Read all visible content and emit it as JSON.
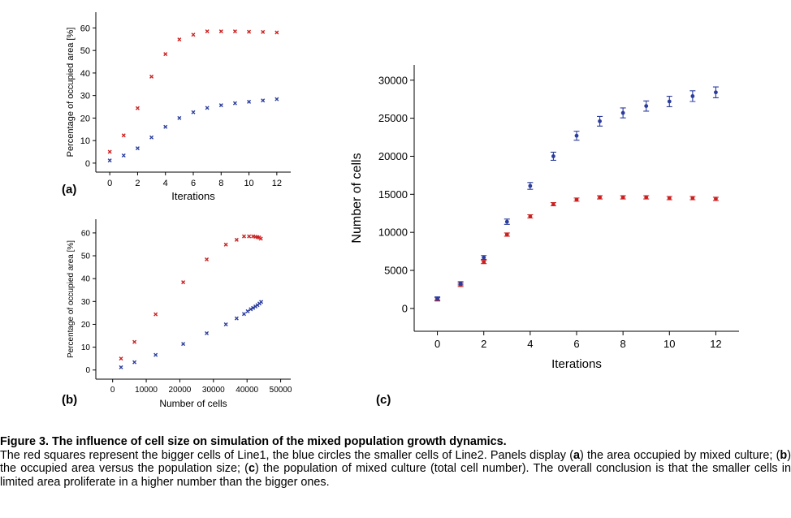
{
  "chart_data": [
    {
      "panel": "(a)",
      "type": "scatter",
      "xlabel": "Iterations",
      "ylabel": "Percentage of occupied area [%]",
      "xlim": [
        -1,
        13
      ],
      "ylim": [
        -4,
        67
      ],
      "xticks": [
        0,
        2,
        4,
        6,
        8,
        10,
        12
      ],
      "yticks": [
        0,
        10,
        20,
        30,
        40,
        50,
        60
      ],
      "series": [
        {
          "marker": "red",
          "color": "#cc2020",
          "x": [
            0,
            1,
            2,
            3,
            4,
            5,
            6,
            7,
            8,
            9,
            10,
            11,
            12
          ],
          "y": [
            5.0,
            12.3,
            24.4,
            38.4,
            48.4,
            54.9,
            57.0,
            58.5,
            58.5,
            58.5,
            58.3,
            58.2,
            58.0
          ]
        },
        {
          "marker": "blue",
          "color": "#2b3d9c",
          "x": [
            0,
            1,
            2,
            3,
            4,
            5,
            6,
            7,
            8,
            9,
            10,
            11,
            12
          ],
          "y": [
            1.2,
            3.4,
            6.6,
            11.4,
            16.1,
            20.0,
            22.6,
            24.5,
            25.7,
            26.6,
            27.2,
            27.8,
            28.4
          ]
        }
      ]
    },
    {
      "panel": "(b)",
      "type": "scatter",
      "xlabel": "Number of cells",
      "ylabel": "Percentage of occupied area [%]",
      "xlim": [
        -5000,
        53000
      ],
      "ylim": [
        -4,
        66
      ],
      "xticks": [
        0,
        10000,
        20000,
        30000,
        40000,
        50000
      ],
      "yticks": [
        0,
        10,
        20,
        30,
        40,
        50,
        60
      ],
      "series": [
        {
          "marker": "red",
          "color": "#cc2020",
          "x": [
            2500,
            6500,
            12800,
            21000,
            28000,
            33700,
            36900,
            39100,
            40600,
            41800,
            42500,
            43100,
            43600,
            44100
          ],
          "y": [
            5.0,
            12.3,
            24.4,
            38.4,
            48.4,
            54.9,
            57.0,
            58.5,
            58.5,
            58.5,
            58.3,
            58.2,
            58.0,
            57.5
          ]
        },
        {
          "marker": "blue",
          "color": "#2b3d9c",
          "x": [
            2500,
            6500,
            12800,
            21000,
            28000,
            33700,
            36900,
            39100,
            40200,
            41100,
            41800,
            42500,
            43100,
            43700,
            44200
          ],
          "y": [
            1.2,
            3.4,
            6.6,
            11.4,
            16.1,
            20.0,
            22.6,
            24.5,
            25.7,
            26.6,
            27.2,
            27.8,
            28.4,
            29.1,
            29.8
          ]
        }
      ]
    },
    {
      "panel": "(c)",
      "type": "scatter",
      "xlabel": "Iterations",
      "ylabel": "Number of cells",
      "xlim": [
        -1,
        13
      ],
      "ylim": [
        -3000,
        32000
      ],
      "xticks": [
        0,
        2,
        4,
        6,
        8,
        10,
        12
      ],
      "yticks": [
        0,
        5000,
        10000,
        15000,
        20000,
        25000,
        30000
      ],
      "series": [
        {
          "marker": "red",
          "color": "#cc2020",
          "x": [
            0,
            1,
            2,
            3,
            4,
            5,
            6,
            7,
            8,
            9,
            10,
            11,
            12
          ],
          "y": [
            1200,
            3100,
            6100,
            9700,
            12100,
            13700,
            14300,
            14600,
            14600,
            14600,
            14500,
            14500,
            14400
          ]
        },
        {
          "marker": "blue",
          "color": "#2b3d9c",
          "x": [
            0,
            1,
            2,
            3,
            4,
            5,
            6,
            7,
            8,
            9,
            10,
            11,
            12
          ],
          "y": [
            1300,
            3300,
            6700,
            11400,
            16100,
            20000,
            22700,
            24600,
            25700,
            26600,
            27200,
            27900,
            28400
          ]
        }
      ]
    }
  ],
  "caption": {
    "title": "Figure 3. The influence of cell size on simulation of the mixed population growth dynamics.",
    "part1": "The red squares represent the bigger cells of Line1, the blue circles the smaller cells of Line2. Panels display (",
    "label_a": "a",
    "part2": ") the area occupied by mixed culture; (",
    "label_b": "b",
    "part3": ") the occupied area versus the population size; (",
    "label_c": "c",
    "part4": ") the population of mixed culture (total cell number). The overall conclusion is that the smaller cells in limited area proliferate in a higher number than the bigger ones."
  }
}
